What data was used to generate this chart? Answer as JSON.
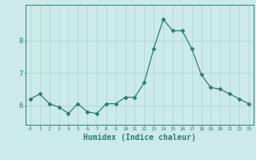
{
  "x": [
    0,
    1,
    2,
    3,
    4,
    5,
    6,
    7,
    8,
    9,
    10,
    11,
    12,
    13,
    14,
    15,
    16,
    17,
    18,
    19,
    20,
    21,
    22,
    23
  ],
  "y": [
    6.2,
    6.35,
    6.05,
    5.95,
    5.75,
    6.05,
    5.8,
    5.75,
    6.05,
    6.05,
    6.25,
    6.25,
    6.7,
    7.75,
    8.65,
    8.3,
    8.3,
    7.75,
    6.95,
    6.55,
    6.5,
    6.35,
    6.2,
    6.05
  ],
  "line_color": "#2e7d6e",
  "marker": "D",
  "marker_size": 2.5,
  "bg_color": "#cceae7",
  "grid_color": "#b0d8d4",
  "tick_color": "#2e7d6e",
  "xlabel": "Humidex (Indice chaleur)",
  "xlabel_fontsize": 7,
  "ylabel_ticks": [
    6,
    7,
    8
  ],
  "ylim": [
    5.4,
    9.1
  ],
  "xlim": [
    -0.5,
    23.5
  ]
}
